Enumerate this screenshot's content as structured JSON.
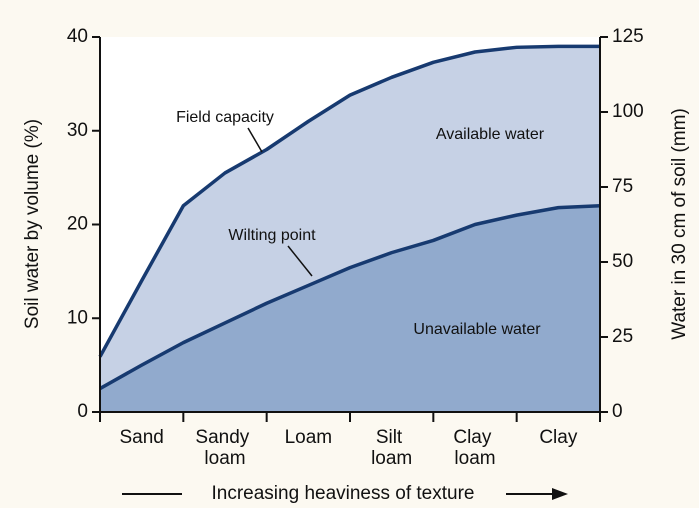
{
  "chart_data": {
    "type": "area",
    "categories": [
      "Sand",
      "Sandy loam",
      "Loam",
      "Silt loam",
      "Clay loam",
      "Clay"
    ],
    "x": [
      0,
      0.5,
      1,
      1.5,
      2,
      2.5,
      3,
      3.5,
      4,
      4.5,
      5,
      5.5,
      6
    ],
    "xlim": [
      0,
      6
    ],
    "series": [
      {
        "name": "Field capacity",
        "color": "#c6d1e5",
        "values": [
          5.9,
          14,
          22,
          25.5,
          28,
          31,
          33.8,
          35.7,
          37.3,
          38.4,
          38.9,
          39,
          39
        ]
      },
      {
        "name": "Wilting point",
        "color": "#91aacd",
        "values": [
          2.5,
          5,
          7.4,
          9.5,
          11.6,
          13.5,
          15.4,
          17,
          18.3,
          20,
          21,
          21.8,
          22
        ]
      }
    ],
    "line_color": "#173a70",
    "ylabel": "Soil water by volume (%)",
    "ylim": [
      0,
      40
    ],
    "yticks": [
      0,
      10,
      20,
      30,
      40
    ],
    "y2label": "Water in 30 cm of soil (mm)",
    "y2lim": [
      0,
      125
    ],
    "y2ticks": [
      0,
      25,
      50,
      75,
      100,
      125
    ],
    "xlabel": "Increasing heaviness of texture",
    "annotations": [
      "Available water",
      "Unavailable water"
    ]
  }
}
